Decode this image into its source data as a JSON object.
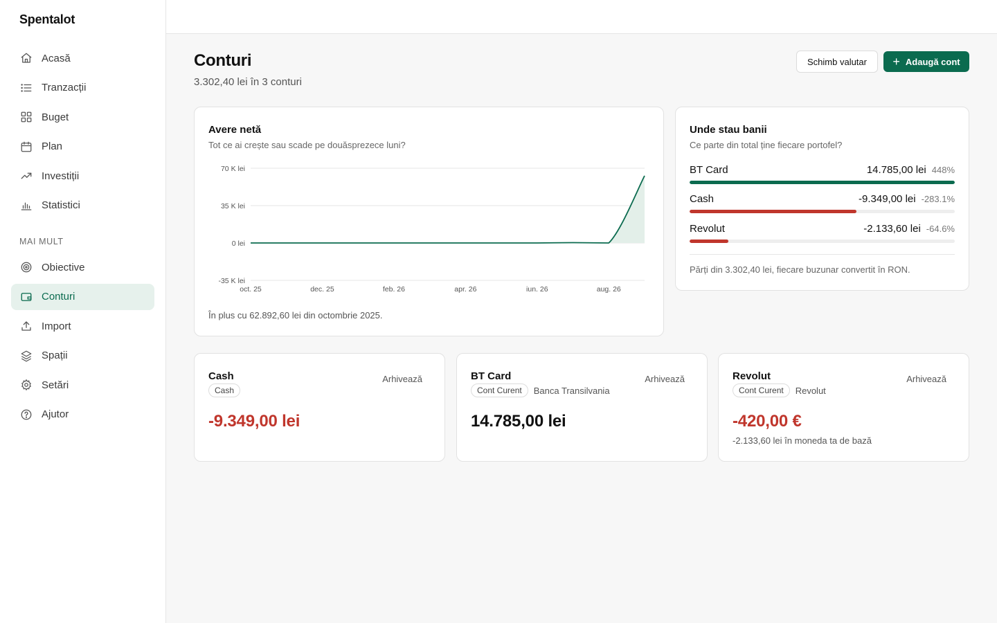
{
  "app": {
    "name": "Spentalot"
  },
  "sidebar": {
    "items": [
      {
        "label": "Acasă",
        "icon": "home-icon"
      },
      {
        "label": "Tranzacții",
        "icon": "list-icon"
      },
      {
        "label": "Buget",
        "icon": "grid-icon"
      },
      {
        "label": "Plan",
        "icon": "calendar-icon"
      },
      {
        "label": "Investiții",
        "icon": "trending-up-icon"
      },
      {
        "label": "Statistici",
        "icon": "bar-chart-icon"
      }
    ],
    "section_label": "MAI MULT",
    "more_items": [
      {
        "label": "Obiective",
        "icon": "target-icon"
      },
      {
        "label": "Conturi",
        "icon": "wallet-icon",
        "active": true
      },
      {
        "label": "Import",
        "icon": "upload-icon"
      },
      {
        "label": "Spații",
        "icon": "layers-icon"
      },
      {
        "label": "Setări",
        "icon": "gear-icon"
      },
      {
        "label": "Ajutor",
        "icon": "help-icon"
      }
    ]
  },
  "header": {
    "title": "Conturi",
    "subtitle": "3.302,40 lei în 3 conturi",
    "exchange_label": "Schimb valutar",
    "add_label": "Adaugă cont"
  },
  "networth": {
    "title": "Avere netă",
    "subtitle": "Tot ce ai crește sau scade pe douăsprezece luni?",
    "note": "În plus cu 62.892,60 lei din octombrie 2025."
  },
  "chart_data": {
    "type": "area",
    "x": [
      "oct. 25",
      "nov. 25",
      "dec. 25",
      "ian. 26",
      "feb. 26",
      "mar. 26",
      "apr. 26",
      "mai 26",
      "iun. 26",
      "iul. 26",
      "aug. 26",
      "sep. 26"
    ],
    "x_tick_labels": [
      "oct. 25",
      "dec. 25",
      "feb. 26",
      "apr. 26",
      "iun. 26",
      "aug. 26"
    ],
    "values": [
      0,
      0,
      0,
      0,
      0,
      0,
      0,
      0,
      0,
      300,
      0,
      62892.6
    ],
    "ylim": [
      -35000,
      70000
    ],
    "y_ticks": [
      -35000,
      0,
      35000,
      70000
    ],
    "y_tick_labels": [
      "-35 K lei",
      "0 lei",
      "35 K lei",
      "70 K lei"
    ],
    "grid": true,
    "colors": {
      "line": "#0b6b4f",
      "fill": "#e3efe9",
      "grid": "#e6e6e6"
    }
  },
  "wallets": {
    "title": "Unde stau banii",
    "subtitle": "Ce parte din total ține fiecare portofel?",
    "items": [
      {
        "name": "BT Card",
        "amount": "14.785,00 lei",
        "pct": "448%",
        "share": 1.0,
        "color": "#0b6b4f"
      },
      {
        "name": "Cash",
        "amount": "-9.349,00 lei",
        "pct": "-283.1%",
        "share": 0.63,
        "color": "#c0362c"
      },
      {
        "name": "Revolut",
        "amount": "-2.133,60 lei",
        "pct": "-64.6%",
        "share": 0.146,
        "color": "#c0362c"
      }
    ],
    "note": "Părți din 3.302,40 lei, fiecare buzunar convertit în RON."
  },
  "accounts": [
    {
      "name": "Cash",
      "type": "Cash",
      "bank": "",
      "balance": "-9.349,00 lei",
      "negative": true,
      "note": "",
      "archive_label": "Arhivează"
    },
    {
      "name": "BT Card",
      "type": "Cont Curent",
      "bank": "Banca Transilvania",
      "balance": "14.785,00 lei",
      "negative": false,
      "note": "",
      "archive_label": "Arhivează"
    },
    {
      "name": "Revolut",
      "type": "Cont Curent",
      "bank": "Revolut",
      "balance": "-420,00 €",
      "negative": true,
      "note": "-2.133,60 lei în moneda ta de bază",
      "archive_label": "Arhivează"
    }
  ]
}
